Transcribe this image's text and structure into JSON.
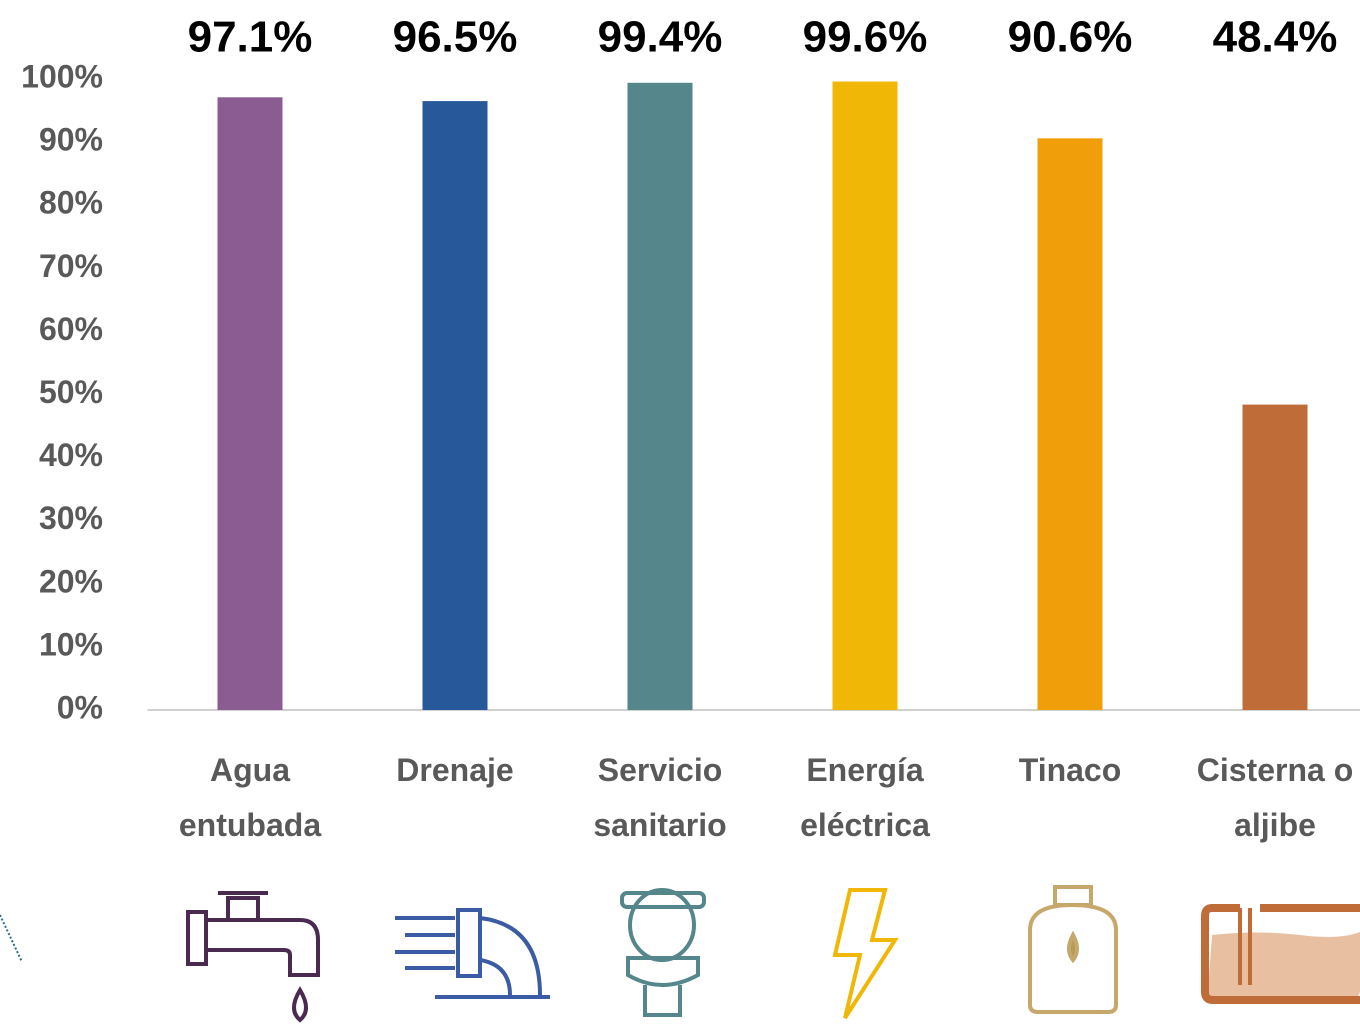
{
  "chart_data": {
    "type": "bar",
    "categories": [
      "Agua entubada",
      "Drenaje",
      "Servicio sanitario",
      "Energía eléctrica",
      "Tinaco",
      "Cisterna o aljibe"
    ],
    "values": [
      97.1,
      96.5,
      99.4,
      99.6,
      90.6,
      48.4
    ],
    "value_labels": [
      "97.1%",
      "96.5%",
      "99.4%",
      "99.6%",
      "90.6%",
      "48.4%"
    ],
    "colors": [
      "#8b5c91",
      "#26589a",
      "#55868c",
      "#f0b706",
      "#f09f0a",
      "#c06c38"
    ],
    "ylim": [
      0,
      100
    ],
    "yticks": [
      {
        "value": 0,
        "label": "0%"
      },
      {
        "value": 10,
        "label": "10%"
      },
      {
        "value": 20,
        "label": "20%"
      },
      {
        "value": 30,
        "label": "30%"
      },
      {
        "value": 40,
        "label": "40%"
      },
      {
        "value": 50,
        "label": "50%"
      },
      {
        "value": 60,
        "label": "60%"
      },
      {
        "value": 70,
        "label": "70%"
      },
      {
        "value": 80,
        "label": "80%"
      },
      {
        "value": 90,
        "label": "90%"
      },
      {
        "value": 100,
        "label": "100%"
      }
    ],
    "grid": false
  }
}
